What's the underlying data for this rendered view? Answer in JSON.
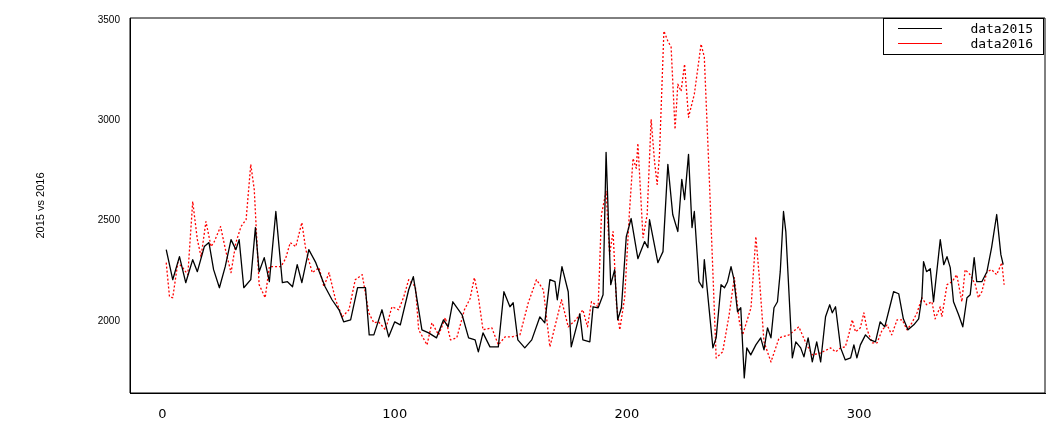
{
  "chart_data": {
    "type": "line",
    "ylabel": "2015 vs 2016",
    "xlim": [
      -14,
      380
    ],
    "ylim": [
      1640,
      3510
    ],
    "xticks": [
      0,
      100,
      200,
      300
    ],
    "yticks": [
      2000,
      2500,
      3000,
      3500
    ],
    "grid": false,
    "legend": "top right",
    "series": [
      {
        "name": "data2015",
        "color": "#000000",
        "line_style": "solid",
        "x": [
          1.6,
          4.4,
          7.3,
          10,
          13,
          15,
          18,
          20,
          22,
          24.5,
          27,
          29.5,
          31.6,
          33,
          35,
          38,
          40,
          41.6,
          43.8,
          46,
          48.8,
          51.6,
          53.8,
          56,
          58,
          60,
          63,
          66,
          68,
          70,
          73,
          76,
          78,
          81,
          84,
          87.4,
          89,
          91,
          94.5,
          97.4,
          100,
          102.4,
          106,
          108,
          111.7,
          114.6,
          118,
          121,
          123,
          125,
          129,
          131.8,
          134.6,
          136,
          138,
          141,
          144.6,
          147,
          149.6,
          151,
          153,
          156,
          159,
          162.5,
          164.6,
          166.8,
          169,
          170,
          172,
          174.7,
          176,
          179.7,
          181,
          184,
          185.4,
          187.6,
          189.7,
          191,
          193,
          194.7,
          196,
          197.6,
          199.7,
          201.8,
          204.7,
          207.6,
          209,
          209.7,
          213.3,
          215.5,
          217.6,
          219.7,
          221.9,
          223.6,
          224.8,
          226.5,
          228,
          229,
          231,
          232.6,
          233.3,
          237,
          238.4,
          240.5,
          242,
          243.3,
          244.8,
          246,
          247.6,
          249,
          250.5,
          251.6,
          253.3,
          255.5,
          257.6,
          259,
          260.5,
          262,
          263.3,
          264.8,
          266,
          267.4,
          268.4,
          271.2,
          272.7,
          274.8,
          276.2,
          278,
          279.8,
          281.7,
          283.4,
          285.5,
          287.3,
          288.4,
          289.8,
          292,
          294,
          296.3,
          297.7,
          299,
          300.5,
          302.7,
          304.8,
          307,
          309,
          311,
          313.4,
          314.8,
          317,
          319,
          321,
          323.5,
          325.6,
          327,
          327.7,
          329,
          330.6,
          332,
          334.9,
          336.4,
          337.8,
          339.2,
          340.6,
          342.8,
          344.6,
          346.4,
          347.8,
          349.5,
          350.6,
          352.8,
          355,
          357,
          359.2,
          361,
          362
        ],
        "values": [
          2355,
          2205,
          2320,
          2190,
          2305,
          2245,
          2370,
          2390,
          2255,
          2165,
          2270,
          2405,
          2355,
          2405,
          2165,
          2205,
          2465,
          2245,
          2315,
          2195,
          2545,
          2190,
          2195,
          2170,
          2280,
          2190,
          2355,
          2290,
          2230,
          2170,
          2105,
          2055,
          1995,
          2005,
          2165,
          2165,
          1930,
          1930,
          2055,
          1920,
          1995,
          1980,
          2155,
          2220,
          1955,
          1940,
          1915,
          2005,
          1970,
          2095,
          2030,
          1915,
          1905,
          1845,
          1940,
          1870,
          1870,
          2145,
          2070,
          2090,
          1905,
          1865,
          1905,
          2020,
          1990,
          2205,
          2195,
          2105,
          2270,
          2145,
          1870,
          2035,
          1905,
          1895,
          2070,
          2065,
          2130,
          2840,
          2180,
          2255,
          2005,
          2065,
          2420,
          2510,
          2310,
          2395,
          2365,
          2505,
          2290,
          2345,
          2780,
          2530,
          2445,
          2705,
          2605,
          2830,
          2465,
          2545,
          2195,
          2165,
          2305,
          1865,
          1915,
          2180,
          2165,
          2195,
          2270,
          2210,
          2045,
          2065,
          1715,
          1865,
          1830,
          1880,
          1915,
          1855,
          1965,
          1915,
          2065,
          2095,
          2245,
          2545,
          2445,
          1815,
          1895,
          1865,
          1820,
          1915,
          1795,
          1895,
          1795,
          2020,
          2080,
          2040,
          2070,
          1865,
          1805,
          1815,
          1880,
          1815,
          1880,
          1930,
          1905,
          1895,
          1995,
          1970,
          2080,
          2145,
          2135,
          2010,
          1955,
          1980,
          2010,
          2120,
          2295,
          2245,
          2260,
          2095,
          2405,
          2280,
          2320,
          2265,
          2095,
          2030,
          1970,
          2115,
          2130,
          2315,
          2195,
          2195,
          2245,
          2365,
          2530,
          2330,
          2280
        ]
      },
      {
        "name": "data2016",
        "color": "#ff0000",
        "line_style": "dotted",
        "x": [
          1.6,
          3,
          4.4,
          6.6,
          8.7,
          10.9,
          13,
          15,
          16.6,
          18.7,
          20.9,
          22.3,
          25,
          27.3,
          29.5,
          31.6,
          33.8,
          36,
          38,
          39.5,
          41.6,
          44.2,
          46,
          48.8,
          51,
          53,
          55,
          57.4,
          60,
          61.7,
          64.5,
          67.4,
          69.5,
          71.7,
          74.5,
          77.4,
          80.3,
          83,
          86,
          88.8,
          91,
          93,
          96,
          98.8,
          101.7,
          103.9,
          106,
          108.9,
          110.3,
          113.9,
          116,
          118.9,
          121.8,
          124,
          126.7,
          130,
          132.4,
          134.3,
          136,
          138,
          141.8,
          144.6,
          147.5,
          150.3,
          153.9,
          157.5,
          161,
          164,
          166.8,
          169.7,
          171.8,
          174.7,
          178,
          181,
          183,
          184.7,
          187.6,
          189,
          191,
          192.5,
          194,
          195.5,
          196.9,
          199,
          201,
          202.6,
          204,
          204.7,
          206.9,
          208.7,
          210.4,
          211.9,
          213,
          214,
          215.9,
          217.6,
          219,
          220.7,
          221.9,
          223.3,
          224.8,
          226.5,
          229,
          231.9,
          233.3,
          235.5,
          238.4,
          241.2,
          244,
          246.2,
          248.4,
          249.8,
          253.4,
          255.5,
          257,
          259,
          262,
          265.5,
          269.8,
          274,
          277,
          279.8,
          283.4,
          287.7,
          289.8,
          292,
          294,
          295.5,
          297,
          298.4,
          300.5,
          302,
          303.4,
          305.6,
          307.7,
          309.9,
          312,
          314,
          316.3,
          318.5,
          320.6,
          322.7,
          324.9,
          327,
          329,
          331.3,
          332.7,
          334.9,
          335.6,
          337.8,
          340,
          342,
          344.2,
          345.6,
          347.8,
          350,
          351.3,
          352.8,
          355,
          357,
          359.2,
          361.4,
          362.4
        ],
        "values": [
          2290,
          2120,
          2115,
          2290,
          2265,
          2230,
          2595,
          2405,
          2320,
          2495,
          2370,
          2395,
          2470,
          2345,
          2240,
          2390,
          2470,
          2505,
          2780,
          2655,
          2180,
          2115,
          2270,
          2270,
          2270,
          2310,
          2390,
          2370,
          2490,
          2355,
          2240,
          2265,
          2170,
          2240,
          2105,
          2020,
          2055,
          2205,
          2230,
          2040,
          1990,
          1995,
          1955,
          2070,
          2055,
          2120,
          2205,
          2170,
          1955,
          1880,
          1990,
          1930,
          2015,
          1905,
          1915,
          2055,
          2110,
          2215,
          2120,
          1955,
          1965,
          1880,
          1920,
          1920,
          1930,
          2090,
          2205,
          2155,
          1870,
          2005,
          2105,
          1970,
          2005,
          2055,
          1970,
          2095,
          2070,
          2530,
          2645,
          2330,
          2445,
          2080,
          1955,
          2115,
          2530,
          2810,
          2760,
          2885,
          2415,
          2530,
          3005,
          2790,
          2680,
          2830,
          3445,
          3395,
          3365,
          2955,
          3180,
          3145,
          3280,
          3015,
          3130,
          3380,
          3315,
          2695,
          1815,
          1845,
          2030,
          2215,
          1995,
          1930,
          2065,
          2420,
          2215,
          1895,
          1795,
          1915,
          1930,
          1970,
          1890,
          1830,
          1840,
          1865,
          1845,
          1865,
          1870,
          1930,
          2005,
          1945,
          1965,
          2040,
          1955,
          1890,
          1890,
          1955,
          1980,
          1930,
          2005,
          2005,
          1955,
          1990,
          2040,
          2115,
          2080,
          2095,
          2010,
          2070,
          2020,
          2180,
          2195,
          2230,
          2095,
          2255,
          2230,
          2180,
          2115,
          2145,
          2245,
          2255,
          2230,
          2290,
          2180
        ]
      }
    ]
  }
}
